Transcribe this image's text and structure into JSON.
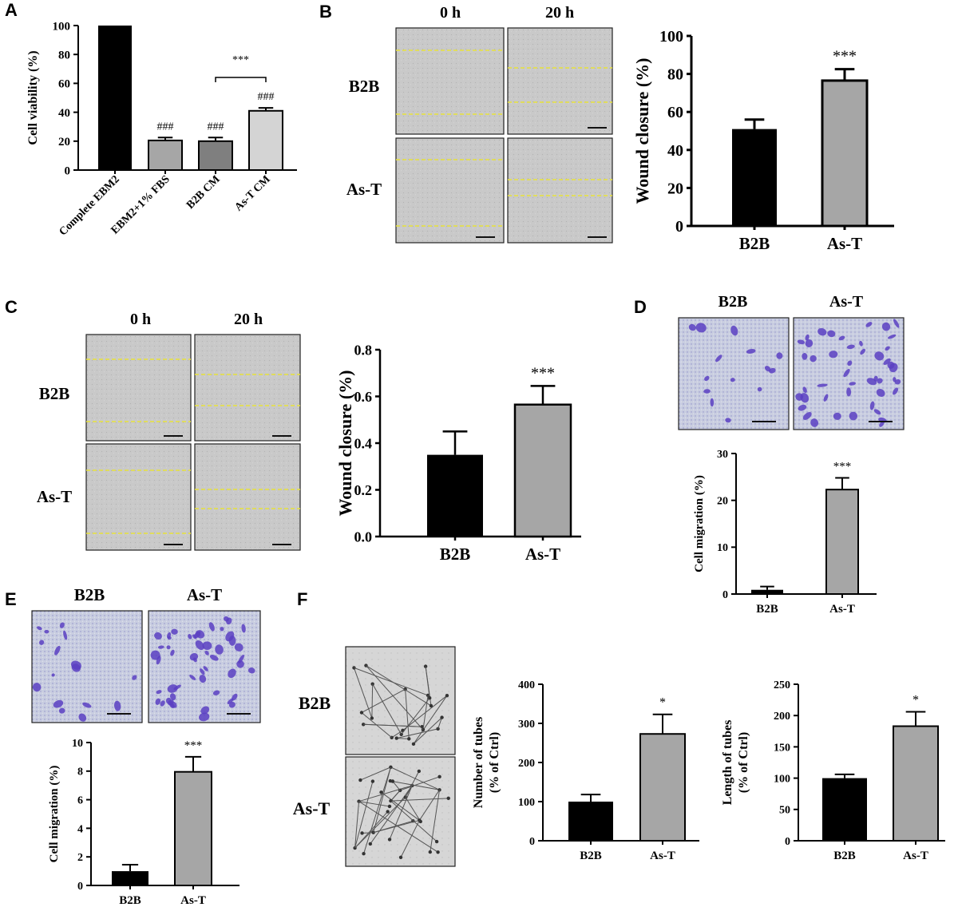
{
  "panels": {
    "A": {
      "letter": "A"
    },
    "B": {
      "letter": "B",
      "col_labels": [
        "0 h",
        "20 h"
      ],
      "row_labels": [
        "B2B",
        "As-T"
      ]
    },
    "C": {
      "letter": "C",
      "col_labels": [
        "0 h",
        "20 h"
      ],
      "row_labels": [
        "B2B",
        "As-T"
      ]
    },
    "D": {
      "letter": "D",
      "col_labels": [
        "B2B",
        "As-T"
      ]
    },
    "E": {
      "letter": "E",
      "col_labels": [
        "B2B",
        "As-T"
      ]
    },
    "F": {
      "letter": "F",
      "row_labels": [
        "B2B",
        "As-T"
      ]
    }
  },
  "colors": {
    "black_bar": "#000000",
    "gray_dark": "#7f7f7f",
    "gray_mid": "#a6a6a6",
    "gray_light": "#d4d4d4",
    "dashed_line": "#e8e23a",
    "crystal_violet": "#5b3fc2"
  },
  "chart_data": [
    {
      "id": "A",
      "type": "bar",
      "categories": [
        "Complete EBM2",
        "EBM2+1% FBS",
        "B2B CM",
        "As-T CM"
      ],
      "values": [
        100,
        20.5,
        20,
        41
      ],
      "errors": [
        0,
        2,
        2.5,
        2
      ],
      "colors": [
        "#000000",
        "#a6a6a6",
        "#7f7f7f",
        "#d4d4d4"
      ],
      "ylabel": "Cell viability (%)",
      "ylim": [
        0,
        100
      ],
      "yticks": [
        0,
        20,
        40,
        60,
        80,
        100
      ],
      "annotations": [
        "",
        "###",
        "###",
        "###"
      ],
      "bracket": {
        "from": 2,
        "to": 3,
        "label": "***"
      }
    },
    {
      "id": "B",
      "type": "bar",
      "categories": [
        "B2B",
        "As-T"
      ],
      "values": [
        51,
        76.5
      ],
      "errors": [
        5,
        6
      ],
      "colors": [
        "#000000",
        "#a6a6a6"
      ],
      "ylabel": "Wound closure (%)",
      "ylim": [
        0,
        100
      ],
      "yticks": [
        0,
        20,
        40,
        60,
        80,
        100
      ],
      "annotations": [
        "",
        "***"
      ]
    },
    {
      "id": "C",
      "type": "bar",
      "categories": [
        "B2B",
        "As-T"
      ],
      "values": [
        0.35,
        0.565
      ],
      "errors": [
        0.1,
        0.08
      ],
      "colors": [
        "#000000",
        "#a6a6a6"
      ],
      "ylabel": "Wound closure (%)",
      "ylim": [
        0,
        0.8
      ],
      "yticks": [
        "0.0",
        "0.2",
        "0.4",
        "0.6",
        "0.8"
      ],
      "annotations": [
        "",
        "***"
      ]
    },
    {
      "id": "D",
      "type": "bar",
      "categories": [
        "B2B",
        "As-T"
      ],
      "values": [
        0.9,
        22.3
      ],
      "errors": [
        0.7,
        2.5
      ],
      "colors": [
        "#000000",
        "#a6a6a6"
      ],
      "ylabel": "Cell migration (%)",
      "ylim": [
        0,
        30
      ],
      "yticks": [
        0,
        10,
        20,
        30
      ],
      "annotations": [
        "",
        "***"
      ]
    },
    {
      "id": "E",
      "type": "bar",
      "categories": [
        "B2B",
        "As-T"
      ],
      "values": [
        1.0,
        7.95
      ],
      "errors": [
        0.45,
        1.05
      ],
      "colors": [
        "#000000",
        "#a6a6a6"
      ],
      "ylabel": "Cell migration (%)",
      "ylim": [
        0,
        10
      ],
      "yticks": [
        0,
        2,
        4,
        6,
        8,
        10
      ],
      "annotations": [
        "",
        "***"
      ]
    },
    {
      "id": "F1",
      "type": "bar",
      "categories": [
        "B2B",
        "As-T"
      ],
      "values": [
        100,
        273
      ],
      "errors": [
        18,
        50
      ],
      "colors": [
        "#000000",
        "#a6a6a6"
      ],
      "ylabel": "Number of tubes",
      "ylabel2": "(% of Ctrl)",
      "ylim": [
        0,
        400
      ],
      "yticks": [
        0,
        100,
        200,
        300,
        400
      ],
      "annotations": [
        "",
        "*"
      ]
    },
    {
      "id": "F2",
      "type": "bar",
      "categories": [
        "B2B",
        "As-T"
      ],
      "values": [
        100,
        183
      ],
      "errors": [
        6,
        23
      ],
      "colors": [
        "#000000",
        "#a6a6a6"
      ],
      "ylabel": "Length of tubes",
      "ylabel2": "(% of Ctrl)",
      "ylim": [
        0,
        250
      ],
      "yticks": [
        0,
        50,
        100,
        150,
        200,
        250
      ],
      "annotations": [
        "",
        "*"
      ]
    }
  ]
}
